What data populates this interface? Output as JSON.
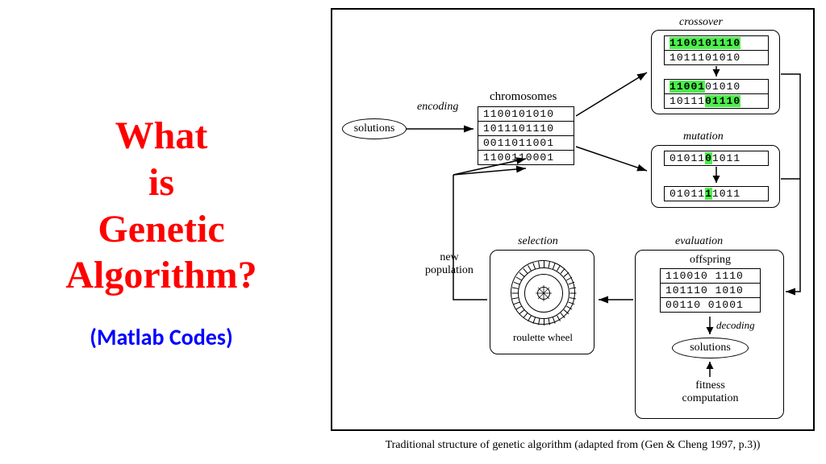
{
  "title": {
    "lines": [
      "What",
      "is",
      "Genetic",
      "Algorithm?"
    ],
    "color": "#ff0000",
    "font_size": 48,
    "font_weight": "bold"
  },
  "subtitle": {
    "text": "(Matlab Codes)",
    "color": "#0000ff",
    "font_size": 28
  },
  "caption": "Traditional structure of genetic algorithm (adapted from (Gen & Cheng 1997, p.3))",
  "labels": {
    "solutions_left": "solutions",
    "encoding": "encoding",
    "chromosomes": "chromosomes",
    "crossover": "crossover",
    "mutation": "mutation",
    "selection": "selection",
    "new_population": "new\npopulation",
    "roulette_wheel": "roulette wheel",
    "evaluation": "evaluation",
    "offspring": "offspring",
    "decoding": "decoding",
    "solutions_right": "solutions",
    "fitness_computation": "fitness\ncomputation"
  },
  "chromosomes": {
    "rows": [
      "1100101010",
      "1011101110",
      "0011011001",
      "1100110001"
    ]
  },
  "crossover": {
    "parent1": [
      {
        "c": "1",
        "h": 1
      },
      {
        "c": "1",
        "h": 1
      },
      {
        "c": "0",
        "h": 1
      },
      {
        "c": "0",
        "h": 1
      },
      {
        "c": "1",
        "h": 1
      },
      {
        "c": "0",
        "h": 1
      },
      {
        "c": "1",
        "h": 1
      },
      {
        "c": "1",
        "h": 1
      },
      {
        "c": "1",
        "h": 1
      },
      {
        "c": "0",
        "h": 1
      }
    ],
    "parent2": [
      {
        "c": "1",
        "h": 0
      },
      {
        "c": "0",
        "h": 0
      },
      {
        "c": "1",
        "h": 0
      },
      {
        "c": "1",
        "h": 0
      },
      {
        "c": "1",
        "h": 0
      },
      {
        "c": "0",
        "h": 0
      },
      {
        "c": "1",
        "h": 0
      },
      {
        "c": "0",
        "h": 0
      },
      {
        "c": "1",
        "h": 0
      },
      {
        "c": "0",
        "h": 0
      }
    ],
    "child1": [
      {
        "c": "1",
        "h": 1
      },
      {
        "c": "1",
        "h": 1
      },
      {
        "c": "0",
        "h": 1
      },
      {
        "c": "0",
        "h": 1
      },
      {
        "c": "1",
        "h": 1
      },
      {
        "c": "0",
        "h": 0
      },
      {
        "c": "1",
        "h": 0
      },
      {
        "c": "0",
        "h": 0
      },
      {
        "c": "1",
        "h": 0
      },
      {
        "c": "0",
        "h": 0
      }
    ],
    "child2": [
      {
        "c": "1",
        "h": 0
      },
      {
        "c": "0",
        "h": 0
      },
      {
        "c": "1",
        "h": 0
      },
      {
        "c": "1",
        "h": 0
      },
      {
        "c": "1",
        "h": 0
      },
      {
        "c": "0",
        "h": 1
      },
      {
        "c": "1",
        "h": 1
      },
      {
        "c": "1",
        "h": 1
      },
      {
        "c": "1",
        "h": 1
      },
      {
        "c": "0",
        "h": 1
      }
    ]
  },
  "mutation": {
    "before": [
      {
        "c": "0",
        "h": 0
      },
      {
        "c": "1",
        "h": 0
      },
      {
        "c": "0",
        "h": 0
      },
      {
        "c": "1",
        "h": 0
      },
      {
        "c": "1",
        "h": 0
      },
      {
        "c": "0",
        "h": 1
      },
      {
        "c": "1",
        "h": 0
      },
      {
        "c": "0",
        "h": 0
      },
      {
        "c": "1",
        "h": 0
      },
      {
        "c": "1",
        "h": 0
      }
    ],
    "after": [
      {
        "c": "0",
        "h": 0
      },
      {
        "c": "1",
        "h": 0
      },
      {
        "c": "0",
        "h": 0
      },
      {
        "c": "1",
        "h": 0
      },
      {
        "c": "1",
        "h": 0
      },
      {
        "c": "1",
        "h": 1
      },
      {
        "c": "1",
        "h": 0
      },
      {
        "c": "0",
        "h": 0
      },
      {
        "c": "1",
        "h": 0
      },
      {
        "c": "1",
        "h": 0
      }
    ]
  },
  "offspring": {
    "rows": [
      "110010 1110",
      "101110 1010",
      "00110 01001"
    ]
  },
  "colors": {
    "highlight": "#4af04a",
    "border": "#000000",
    "background": "#ffffff"
  }
}
